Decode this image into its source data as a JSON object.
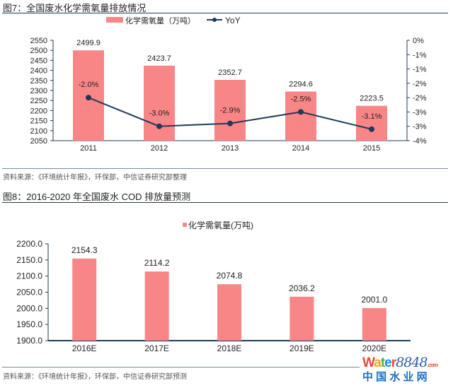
{
  "chart_data": [
    {
      "type": "bar+line",
      "title": "图7：全国废水化学需氧量排放情况",
      "categories": [
        "2011",
        "2012",
        "2013",
        "2014",
        "2015"
      ],
      "series": [
        {
          "name": "化学需氧量（万吨）",
          "type": "bar",
          "axis": "left",
          "values": [
            2499.9,
            2423.7,
            2352.7,
            2294.6,
            2223.5
          ],
          "data_labels": [
            "2499.9",
            "2423.7",
            "2352.7",
            "2294.6",
            "2223.5"
          ]
        },
        {
          "name": "YoY",
          "type": "line",
          "axis": "right",
          "values": [
            -2.0,
            -3.0,
            -2.9,
            -2.5,
            -3.1
          ],
          "data_labels": [
            "-2.0%",
            "-3.0%",
            "-2.9%",
            "-2.5%",
            "-3.1%"
          ]
        }
      ],
      "ylim": [
        2050,
        2550
      ],
      "yticks": [
        "2050",
        "2100",
        "2150",
        "2200",
        "2250",
        "2300",
        "2350",
        "2400",
        "2450",
        "2500",
        "2550"
      ],
      "y2lim": [
        -3.5,
        0
      ],
      "y2ticks": [
        "0%",
        "-1%",
        "-1%",
        "-2%",
        "-2%",
        "-3%",
        "-3%",
        "-4%"
      ],
      "legend": "top",
      "grid": false,
      "source": "资料来源：《环境统计年报》，环保部，中信证券研究部整理"
    },
    {
      "type": "bar",
      "title": "图8：2016-2020 年全国废水 COD 排放量预测",
      "categories": [
        "2016E",
        "2017E",
        "2018E",
        "2019E",
        "2020E"
      ],
      "series": [
        {
          "name": "化学需氧量(万吨)",
          "values": [
            2154.3,
            2114.2,
            2074.8,
            2036.2,
            2001.0
          ],
          "data_labels": [
            "2154.3",
            "2114.2",
            "2074.8",
            "2036.2",
            "2001.0"
          ]
        }
      ],
      "ylim": [
        1900,
        2200
      ],
      "yticks": [
        "1900.0",
        "1950.0",
        "2000.0",
        "2050.0",
        "2100.0",
        "2150.0",
        "2200.0"
      ],
      "legend": "top",
      "grid": false,
      "source": "资料来源：《环境统计年报》，环保部，中信证券研究部预测"
    }
  ],
  "colors": {
    "bar": "#f98686",
    "line": "#1f3a5a",
    "axis": "#1f3a5a"
  },
  "watermark": {
    "text_en": "Water8848.com",
    "text_cn": "中 国 水 业 网"
  }
}
